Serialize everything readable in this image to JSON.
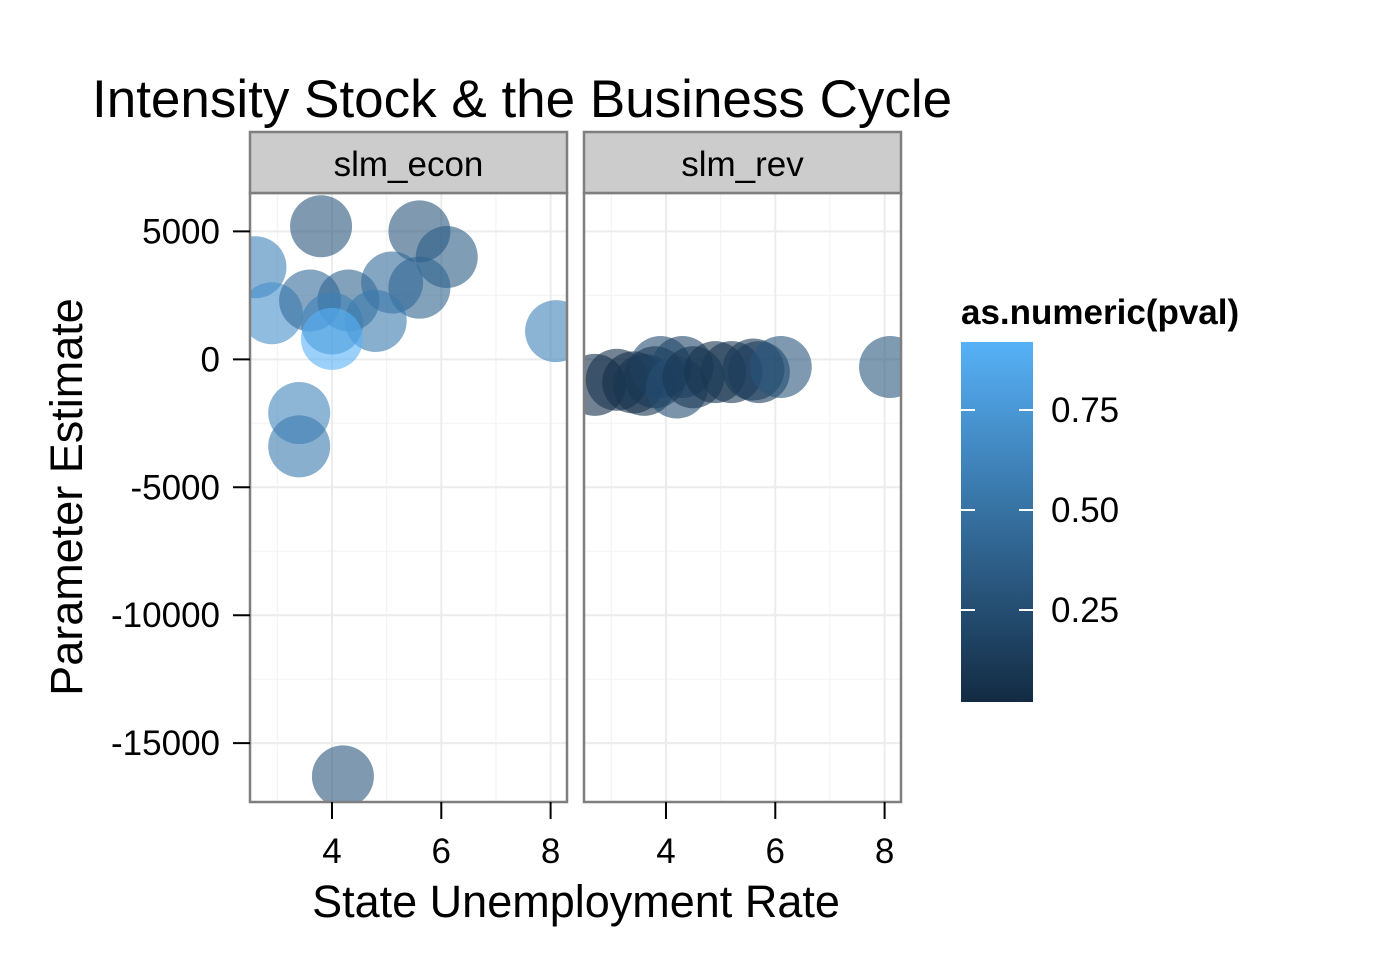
{
  "chart_data": {
    "type": "scatter",
    "title": "Intensity Stock & the Business Cycle",
    "xlabel": "State Unemployment Rate",
    "ylabel": "Parameter Estimate",
    "xlim": [
      2.5,
      8.3
    ],
    "ylim": [
      -17300,
      6500
    ],
    "x_ticks": [
      4,
      6,
      8
    ],
    "y_ticks": [
      5000,
      0,
      -5000,
      -10000,
      -15000
    ],
    "y_tick_labels": [
      "5000",
      "0",
      "-5000",
      "-10000",
      "-15000"
    ],
    "grid": true,
    "legend": {
      "title": "as.numeric(pval)",
      "placement": "right",
      "ticks": [
        0.75,
        0.5,
        0.25
      ],
      "tick_labels": [
        "0.75",
        "0.50",
        "0.25"
      ],
      "range": [
        0.02,
        0.92
      ],
      "color_low": "#132B43",
      "color_high": "#56B1F7"
    },
    "facets": [
      {
        "label": "slm_econ",
        "points": [
          {
            "x": 2.6,
            "y": 3600,
            "pval": 0.6
          },
          {
            "x": 3.8,
            "y": 5200,
            "pval": 0.3
          },
          {
            "x": 5.6,
            "y": 5000,
            "pval": 0.3
          },
          {
            "x": 6.1,
            "y": 4000,
            "pval": 0.35
          },
          {
            "x": 2.9,
            "y": 1800,
            "pval": 0.7
          },
          {
            "x": 3.6,
            "y": 2300,
            "pval": 0.45
          },
          {
            "x": 4.3,
            "y": 2300,
            "pval": 0.4
          },
          {
            "x": 5.1,
            "y": 3000,
            "pval": 0.45
          },
          {
            "x": 5.6,
            "y": 2800,
            "pval": 0.4
          },
          {
            "x": 4.0,
            "y": 1400,
            "pval": 0.6
          },
          {
            "x": 4.8,
            "y": 1500,
            "pval": 0.55
          },
          {
            "x": 4.0,
            "y": 800,
            "pval": 0.92
          },
          {
            "x": 8.1,
            "y": 1100,
            "pval": 0.6
          },
          {
            "x": 3.4,
            "y": -2100,
            "pval": 0.62
          },
          {
            "x": 3.4,
            "y": -3400,
            "pval": 0.55
          },
          {
            "x": 4.2,
            "y": -16300,
            "pval": 0.3
          }
        ]
      },
      {
        "label": "slm_rev",
        "points": [
          {
            "x": 2.7,
            "y": -1000,
            "pval": 0.05
          },
          {
            "x": 3.1,
            "y": -800,
            "pval": 0.07
          },
          {
            "x": 3.4,
            "y": -900,
            "pval": 0.05
          },
          {
            "x": 3.6,
            "y": -1000,
            "pval": 0.08
          },
          {
            "x": 3.9,
            "y": -300,
            "pval": 0.25
          },
          {
            "x": 3.8,
            "y": -700,
            "pval": 0.1
          },
          {
            "x": 4.3,
            "y": -300,
            "pval": 0.2
          },
          {
            "x": 4.2,
            "y": -1100,
            "pval": 0.25
          },
          {
            "x": 4.5,
            "y": -700,
            "pval": 0.1
          },
          {
            "x": 4.9,
            "y": -500,
            "pval": 0.08
          },
          {
            "x": 5.2,
            "y": -500,
            "pval": 0.1
          },
          {
            "x": 5.6,
            "y": -400,
            "pval": 0.12
          },
          {
            "x": 5.7,
            "y": -500,
            "pval": 0.15
          },
          {
            "x": 6.1,
            "y": -300,
            "pval": 0.3
          },
          {
            "x": 8.1,
            "y": -300,
            "pval": 0.32
          }
        ]
      }
    ]
  }
}
